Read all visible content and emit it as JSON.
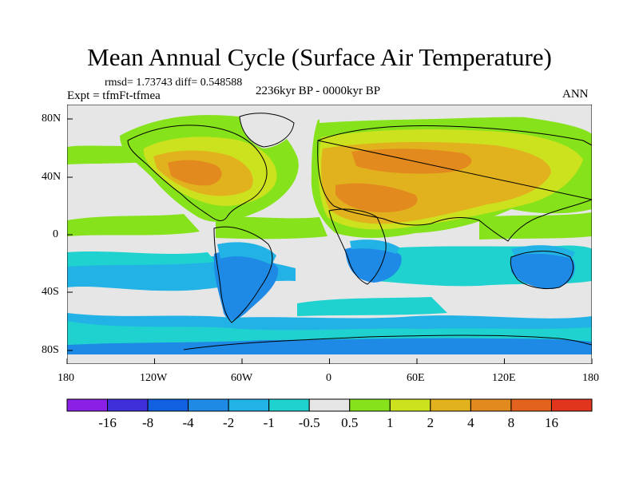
{
  "title": "Mean Annual Cycle (Surface Air Temperature)",
  "stats": "rmsd= 1.73743 diff= 0.548588",
  "experiment": "Expt = tfmFt-tfmea",
  "period": "2236kyr BP - 0000kyr BP",
  "season": "ANN",
  "lat_labels": [
    "80N",
    "40N",
    "0",
    "40S",
    "80S"
  ],
  "lon_labels": [
    "180",
    "120W",
    "60W",
    "0",
    "60E",
    "120E",
    "180"
  ],
  "colorbar": {
    "labels": [
      "-16",
      "-8",
      "-4",
      "-2",
      "-1",
      "-0.5",
      "0.5",
      "1",
      "2",
      "4",
      "8",
      "16"
    ],
    "colors": [
      "#8a1fe6",
      "#3f2fd8",
      "#1060e0",
      "#1e8ae6",
      "#22b2e6",
      "#1fd2cf",
      "#e6e6e6",
      "#86e21a",
      "#cde21e",
      "#e2b21e",
      "#e28a1e",
      "#e2621e",
      "#e2351e"
    ]
  },
  "map_colors": {
    "neutral": "#e6e6e6",
    "green": "#86e21a",
    "yellow_green": "#cde21e",
    "orange": "#e2b21e",
    "dark_orange": "#e28a1e",
    "cyan": "#1fd2cf",
    "light_blue": "#22b2e6",
    "blue": "#1e8ae6"
  }
}
